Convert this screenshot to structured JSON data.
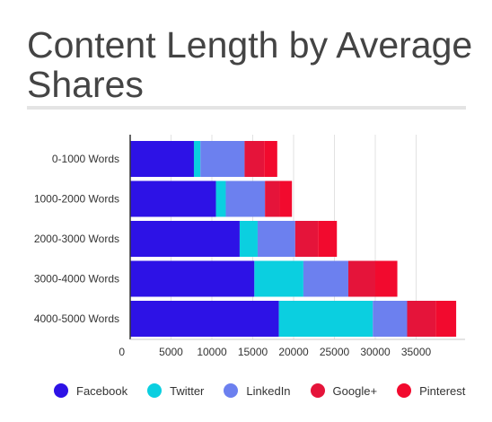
{
  "chart_data": {
    "type": "bar",
    "orientation": "horizontal",
    "stacked": true,
    "title": "Content Length by Average Shares",
    "xlabel": "",
    "ylabel": "",
    "categories": [
      "0-1000 Words",
      "1000-2000 Words",
      "2000-3000 Words",
      "3000-4000 Words",
      "4000-5000 Words"
    ],
    "series": [
      {
        "name": "Facebook",
        "color": "#2d12e6",
        "values": [
          7800,
          10500,
          13400,
          15200,
          18200
        ]
      },
      {
        "name": "Twitter",
        "color": "#0bcfe0",
        "values": [
          800,
          1200,
          2200,
          6000,
          11500
        ]
      },
      {
        "name": "LinkedIn",
        "color": "#6c80ef",
        "values": [
          5400,
          4800,
          4600,
          5500,
          4200
        ]
      },
      {
        "name": "Google+",
        "color": "#e5143a",
        "values": [
          2400,
          1800,
          2800,
          3300,
          3500
        ]
      },
      {
        "name": "Pinterest",
        "color": "#f20a2e",
        "values": [
          1600,
          1500,
          2300,
          2700,
          2500
        ]
      }
    ],
    "xlim": [
      0,
      40000
    ],
    "xticks": [
      0,
      5000,
      10000,
      15000,
      20000,
      25000,
      30000,
      35000
    ],
    "grid": true,
    "legend": "bottom"
  }
}
